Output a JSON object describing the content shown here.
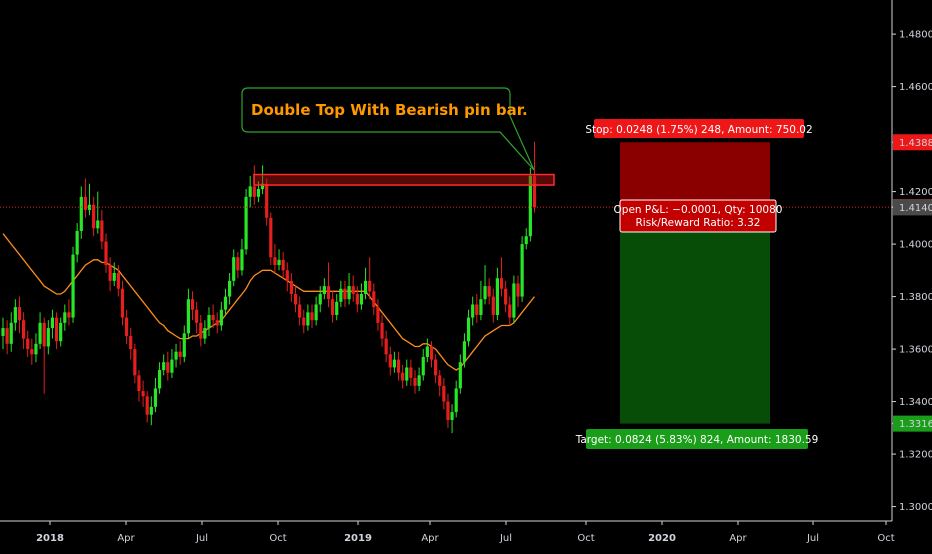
{
  "chart_data": {
    "type": "candlestick",
    "indicator": "moving average (orange)",
    "time_axis": [
      "2018",
      "Apr",
      "Jul",
      "Oct",
      "2019",
      "Apr",
      "Jul",
      "Oct",
      "2020",
      "Apr",
      "Jul",
      "Oct"
    ],
    "price_axis": [
      "1.4800",
      "1.4600",
      "1.4388",
      "1.4200",
      "1.4141",
      "1.4140",
      "1.4000",
      "1.3800",
      "1.3600",
      "1.3400",
      "1.3316",
      "1.3200",
      "1.3000"
    ],
    "ylim": [
      1.2945,
      1.493
    ],
    "last_price": 1.4141,
    "last_price_label": "1.4141",
    "secondary_price_label": "1.4140",
    "stop_price_label": "1.4388",
    "target_price_label": "1.3316",
    "annotation": "Double Top With Bearish pin bar.",
    "resistance_zone": [
      1.4225,
      1.4265
    ],
    "position": {
      "type": "short",
      "entry": 1.414,
      "stop": 1.4388,
      "target": 1.3316,
      "stop_label": "Stop: 0.0248 (1.75%) 248, Amount: 750.02",
      "pnl_label": "Open P&L: −0.0001, Qty: 10080",
      "rr_label": "Risk/Reward Ratio: 3.32",
      "target_label": "Target: 0.0824 (5.83%) 824, Amount: 1830.59"
    },
    "series": [
      {
        "o": 1.365,
        "c": 1.368,
        "h": 1.372,
        "l": 1.36
      },
      {
        "o": 1.368,
        "c": 1.362,
        "h": 1.371,
        "l": 1.358
      },
      {
        "o": 1.362,
        "c": 1.37,
        "h": 1.374,
        "l": 1.359
      },
      {
        "o": 1.37,
        "c": 1.376,
        "h": 1.379,
        "l": 1.367
      },
      {
        "o": 1.376,
        "c": 1.371,
        "h": 1.38,
        "l": 1.366
      },
      {
        "o": 1.371,
        "c": 1.364,
        "h": 1.374,
        "l": 1.36
      },
      {
        "o": 1.364,
        "c": 1.36,
        "h": 1.367,
        "l": 1.357
      },
      {
        "o": 1.36,
        "c": 1.358,
        "h": 1.364,
        "l": 1.354
      },
      {
        "o": 1.358,
        "c": 1.362,
        "h": 1.366,
        "l": 1.355
      },
      {
        "o": 1.362,
        "c": 1.37,
        "h": 1.374,
        "l": 1.36
      },
      {
        "o": 1.37,
        "c": 1.361,
        "h": 1.372,
        "l": 1.343
      },
      {
        "o": 1.361,
        "c": 1.368,
        "h": 1.371,
        "l": 1.358
      },
      {
        "o": 1.368,
        "c": 1.372,
        "h": 1.375,
        "l": 1.364
      },
      {
        "o": 1.372,
        "c": 1.363,
        "h": 1.374,
        "l": 1.36
      },
      {
        "o": 1.363,
        "c": 1.37,
        "h": 1.372,
        "l": 1.361
      },
      {
        "o": 1.37,
        "c": 1.374,
        "h": 1.377,
        "l": 1.367
      },
      {
        "o": 1.374,
        "c": 1.372,
        "h": 1.379,
        "l": 1.369
      },
      {
        "o": 1.372,
        "c": 1.396,
        "h": 1.399,
        "l": 1.37
      },
      {
        "o": 1.396,
        "c": 1.405,
        "h": 1.408,
        "l": 1.393
      },
      {
        "o": 1.405,
        "c": 1.418,
        "h": 1.422,
        "l": 1.402
      },
      {
        "o": 1.418,
        "c": 1.413,
        "h": 1.425,
        "l": 1.41
      },
      {
        "o": 1.413,
        "c": 1.415,
        "h": 1.423,
        "l": 1.411
      },
      {
        "o": 1.415,
        "c": 1.406,
        "h": 1.418,
        "l": 1.403
      },
      {
        "o": 1.406,
        "c": 1.409,
        "h": 1.42,
        "l": 1.404
      },
      {
        "o": 1.409,
        "c": 1.401,
        "h": 1.413,
        "l": 1.398
      },
      {
        "o": 1.401,
        "c": 1.392,
        "h": 1.404,
        "l": 1.389
      },
      {
        "o": 1.392,
        "c": 1.386,
        "h": 1.395,
        "l": 1.382
      },
      {
        "o": 1.386,
        "c": 1.389,
        "h": 1.393,
        "l": 1.384
      },
      {
        "o": 1.389,
        "c": 1.383,
        "h": 1.392,
        "l": 1.38
      },
      {
        "o": 1.383,
        "c": 1.372,
        "h": 1.386,
        "l": 1.369
      },
      {
        "o": 1.372,
        "c": 1.365,
        "h": 1.375,
        "l": 1.362
      },
      {
        "o": 1.365,
        "c": 1.36,
        "h": 1.368,
        "l": 1.356
      },
      {
        "o": 1.36,
        "c": 1.35,
        "h": 1.362,
        "l": 1.347
      },
      {
        "o": 1.35,
        "c": 1.344,
        "h": 1.352,
        "l": 1.34
      },
      {
        "o": 1.344,
        "c": 1.342,
        "h": 1.348,
        "l": 1.338
      },
      {
        "o": 1.342,
        "c": 1.335,
        "h": 1.344,
        "l": 1.332
      },
      {
        "o": 1.335,
        "c": 1.338,
        "h": 1.342,
        "l": 1.331
      },
      {
        "o": 1.338,
        "c": 1.345,
        "h": 1.349,
        "l": 1.336
      },
      {
        "o": 1.345,
        "c": 1.352,
        "h": 1.355,
        "l": 1.343
      },
      {
        "o": 1.352,
        "c": 1.355,
        "h": 1.358,
        "l": 1.35
      },
      {
        "o": 1.355,
        "c": 1.351,
        "h": 1.359,
        "l": 1.348
      },
      {
        "o": 1.351,
        "c": 1.356,
        "h": 1.36,
        "l": 1.349
      },
      {
        "o": 1.356,
        "c": 1.359,
        "h": 1.362,
        "l": 1.353
      },
      {
        "o": 1.359,
        "c": 1.357,
        "h": 1.363,
        "l": 1.354
      },
      {
        "o": 1.357,
        "c": 1.366,
        "h": 1.369,
        "l": 1.355
      },
      {
        "o": 1.366,
        "c": 1.379,
        "h": 1.383,
        "l": 1.364
      },
      {
        "o": 1.379,
        "c": 1.375,
        "h": 1.382,
        "l": 1.371
      },
      {
        "o": 1.375,
        "c": 1.37,
        "h": 1.378,
        "l": 1.366
      },
      {
        "o": 1.37,
        "c": 1.364,
        "h": 1.373,
        "l": 1.361
      },
      {
        "o": 1.364,
        "c": 1.368,
        "h": 1.371,
        "l": 1.362
      },
      {
        "o": 1.368,
        "c": 1.373,
        "h": 1.376,
        "l": 1.365
      },
      {
        "o": 1.373,
        "c": 1.371,
        "h": 1.377,
        "l": 1.368
      },
      {
        "o": 1.371,
        "c": 1.369,
        "h": 1.374,
        "l": 1.366
      },
      {
        "o": 1.369,
        "c": 1.375,
        "h": 1.378,
        "l": 1.367
      },
      {
        "o": 1.375,
        "c": 1.38,
        "h": 1.383,
        "l": 1.373
      },
      {
        "o": 1.38,
        "c": 1.386,
        "h": 1.389,
        "l": 1.377
      },
      {
        "o": 1.386,
        "c": 1.395,
        "h": 1.398,
        "l": 1.384
      },
      {
        "o": 1.395,
        "c": 1.39,
        "h": 1.397,
        "l": 1.387
      },
      {
        "o": 1.39,
        "c": 1.398,
        "h": 1.402,
        "l": 1.388
      },
      {
        "o": 1.398,
        "c": 1.418,
        "h": 1.421,
        "l": 1.396
      },
      {
        "o": 1.418,
        "c": 1.422,
        "h": 1.426,
        "l": 1.414
      },
      {
        "o": 1.422,
        "c": 1.418,
        "h": 1.43,
        "l": 1.415
      },
      {
        "o": 1.418,
        "c": 1.421,
        "h": 1.424,
        "l": 1.416
      },
      {
        "o": 1.421,
        "c": 1.423,
        "h": 1.43,
        "l": 1.419
      },
      {
        "o": 1.423,
        "c": 1.41,
        "h": 1.425,
        "l": 1.407
      },
      {
        "o": 1.41,
        "c": 1.395,
        "h": 1.412,
        "l": 1.392
      },
      {
        "o": 1.395,
        "c": 1.392,
        "h": 1.4,
        "l": 1.389
      },
      {
        "o": 1.392,
        "c": 1.394,
        "h": 1.398,
        "l": 1.39
      },
      {
        "o": 1.394,
        "c": 1.39,
        "h": 1.397,
        "l": 1.387
      },
      {
        "o": 1.39,
        "c": 1.386,
        "h": 1.393,
        "l": 1.382
      },
      {
        "o": 1.386,
        "c": 1.381,
        "h": 1.389,
        "l": 1.378
      },
      {
        "o": 1.381,
        "c": 1.377,
        "h": 1.384,
        "l": 1.374
      },
      {
        "o": 1.377,
        "c": 1.372,
        "h": 1.38,
        "l": 1.369
      },
      {
        "o": 1.372,
        "c": 1.369,
        "h": 1.375,
        "l": 1.366
      },
      {
        "o": 1.369,
        "c": 1.374,
        "h": 1.377,
        "l": 1.367
      },
      {
        "o": 1.374,
        "c": 1.371,
        "h": 1.377,
        "l": 1.368
      },
      {
        "o": 1.371,
        "c": 1.377,
        "h": 1.38,
        "l": 1.369
      },
      {
        "o": 1.377,
        "c": 1.381,
        "h": 1.384,
        "l": 1.374
      },
      {
        "o": 1.381,
        "c": 1.384,
        "h": 1.387,
        "l": 1.379
      },
      {
        "o": 1.384,
        "c": 1.379,
        "h": 1.393,
        "l": 1.376
      },
      {
        "o": 1.379,
        "c": 1.373,
        "h": 1.382,
        "l": 1.37
      },
      {
        "o": 1.373,
        "c": 1.378,
        "h": 1.381,
        "l": 1.371
      },
      {
        "o": 1.378,
        "c": 1.383,
        "h": 1.386,
        "l": 1.376
      },
      {
        "o": 1.383,
        "c": 1.379,
        "h": 1.386,
        "l": 1.376
      },
      {
        "o": 1.379,
        "c": 1.384,
        "h": 1.389,
        "l": 1.377
      },
      {
        "o": 1.384,
        "c": 1.381,
        "h": 1.388,
        "l": 1.378
      },
      {
        "o": 1.381,
        "c": 1.377,
        "h": 1.384,
        "l": 1.374
      },
      {
        "o": 1.377,
        "c": 1.381,
        "h": 1.385,
        "l": 1.375
      },
      {
        "o": 1.381,
        "c": 1.386,
        "h": 1.391,
        "l": 1.379
      },
      {
        "o": 1.386,
        "c": 1.382,
        "h": 1.395,
        "l": 1.379
      },
      {
        "o": 1.382,
        "c": 1.376,
        "h": 1.385,
        "l": 1.373
      },
      {
        "o": 1.376,
        "c": 1.37,
        "h": 1.379,
        "l": 1.367
      },
      {
        "o": 1.37,
        "c": 1.364,
        "h": 1.373,
        "l": 1.361
      },
      {
        "o": 1.364,
        "c": 1.358,
        "h": 1.367,
        "l": 1.355
      },
      {
        "o": 1.358,
        "c": 1.353,
        "h": 1.361,
        "l": 1.35
      },
      {
        "o": 1.353,
        "c": 1.356,
        "h": 1.359,
        "l": 1.351
      },
      {
        "o": 1.356,
        "c": 1.351,
        "h": 1.359,
        "l": 1.348
      },
      {
        "o": 1.351,
        "c": 1.348,
        "h": 1.354,
        "l": 1.345
      },
      {
        "o": 1.348,
        "c": 1.353,
        "h": 1.356,
        "l": 1.346
      },
      {
        "o": 1.353,
        "c": 1.349,
        "h": 1.356,
        "l": 1.346
      },
      {
        "o": 1.349,
        "c": 1.346,
        "h": 1.352,
        "l": 1.343
      },
      {
        "o": 1.346,
        "c": 1.35,
        "h": 1.353,
        "l": 1.344
      },
      {
        "o": 1.35,
        "c": 1.357,
        "h": 1.36,
        "l": 1.348
      },
      {
        "o": 1.357,
        "c": 1.361,
        "h": 1.364,
        "l": 1.355
      },
      {
        "o": 1.361,
        "c": 1.356,
        "h": 1.363,
        "l": 1.353
      },
      {
        "o": 1.356,
        "c": 1.35,
        "h": 1.358,
        "l": 1.347
      },
      {
        "o": 1.35,
        "c": 1.346,
        "h": 1.352,
        "l": 1.342
      },
      {
        "o": 1.346,
        "c": 1.34,
        "h": 1.349,
        "l": 1.337
      },
      {
        "o": 1.34,
        "c": 1.333,
        "h": 1.343,
        "l": 1.33
      },
      {
        "o": 1.333,
        "c": 1.336,
        "h": 1.339,
        "l": 1.328
      },
      {
        "o": 1.336,
        "c": 1.345,
        "h": 1.348,
        "l": 1.334
      },
      {
        "o": 1.345,
        "c": 1.355,
        "h": 1.358,
        "l": 1.343
      },
      {
        "o": 1.355,
        "c": 1.363,
        "h": 1.366,
        "l": 1.353
      },
      {
        "o": 1.363,
        "c": 1.372,
        "h": 1.375,
        "l": 1.361
      },
      {
        "o": 1.372,
        "c": 1.377,
        "h": 1.38,
        "l": 1.369
      },
      {
        "o": 1.377,
        "c": 1.373,
        "h": 1.381,
        "l": 1.37
      },
      {
        "o": 1.373,
        "c": 1.379,
        "h": 1.386,
        "l": 1.371
      },
      {
        "o": 1.379,
        "c": 1.384,
        "h": 1.392,
        "l": 1.377
      },
      {
        "o": 1.384,
        "c": 1.38,
        "h": 1.387,
        "l": 1.377
      },
      {
        "o": 1.38,
        "c": 1.373,
        "h": 1.383,
        "l": 1.37
      },
      {
        "o": 1.373,
        "c": 1.387,
        "h": 1.391,
        "l": 1.371
      },
      {
        "o": 1.387,
        "c": 1.383,
        "h": 1.395,
        "l": 1.38
      },
      {
        "o": 1.383,
        "c": 1.377,
        "h": 1.386,
        "l": 1.374
      },
      {
        "o": 1.377,
        "c": 1.372,
        "h": 1.38,
        "l": 1.369
      },
      {
        "o": 1.372,
        "c": 1.385,
        "h": 1.388,
        "l": 1.37
      },
      {
        "o": 1.385,
        "c": 1.38,
        "h": 1.388,
        "l": 1.376
      },
      {
        "o": 1.38,
        "c": 1.4,
        "h": 1.403,
        "l": 1.378
      },
      {
        "o": 1.4,
        "c": 1.403,
        "h": 1.406,
        "l": 1.398
      },
      {
        "o": 1.403,
        "c": 1.426,
        "h": 1.429,
        "l": 1.401
      },
      {
        "o": 1.426,
        "c": 1.414,
        "h": 1.439,
        "l": 1.412
      }
    ],
    "ma": [
      1.404,
      1.402,
      1.4,
      1.398,
      1.396,
      1.394,
      1.392,
      1.39,
      1.388,
      1.386,
      1.384,
      1.383,
      1.382,
      1.381,
      1.381,
      1.382,
      1.384,
      1.386,
      1.388,
      1.39,
      1.392,
      1.393,
      1.394,
      1.394,
      1.393,
      1.393,
      1.392,
      1.391,
      1.39,
      1.388,
      1.386,
      1.384,
      1.382,
      1.38,
      1.378,
      1.376,
      1.374,
      1.372,
      1.37,
      1.369,
      1.367,
      1.366,
      1.365,
      1.364,
      1.364,
      1.364,
      1.365,
      1.365,
      1.366,
      1.367,
      1.368,
      1.369,
      1.37,
      1.371,
      1.373,
      1.375,
      1.377,
      1.379,
      1.381,
      1.383,
      1.386,
      1.388,
      1.389,
      1.39,
      1.39,
      1.39,
      1.389,
      1.388,
      1.387,
      1.386,
      1.385,
      1.384,
      1.383,
      1.382,
      1.382,
      1.382,
      1.382,
      1.382,
      1.382,
      1.382,
      1.382,
      1.382,
      1.382,
      1.382,
      1.382,
      1.382,
      1.382,
      1.382,
      1.382,
      1.38,
      1.378,
      1.376,
      1.374,
      1.372,
      1.37,
      1.368,
      1.366,
      1.364,
      1.363,
      1.362,
      1.361,
      1.361,
      1.362,
      1.362,
      1.361,
      1.36,
      1.358,
      1.356,
      1.354,
      1.353,
      1.352,
      1.353,
      1.355,
      1.357,
      1.359,
      1.361,
      1.363,
      1.365,
      1.366,
      1.367,
      1.368,
      1.369,
      1.369,
      1.369,
      1.37,
      1.372,
      1.374,
      1.376,
      1.378,
      1.38
    ]
  }
}
